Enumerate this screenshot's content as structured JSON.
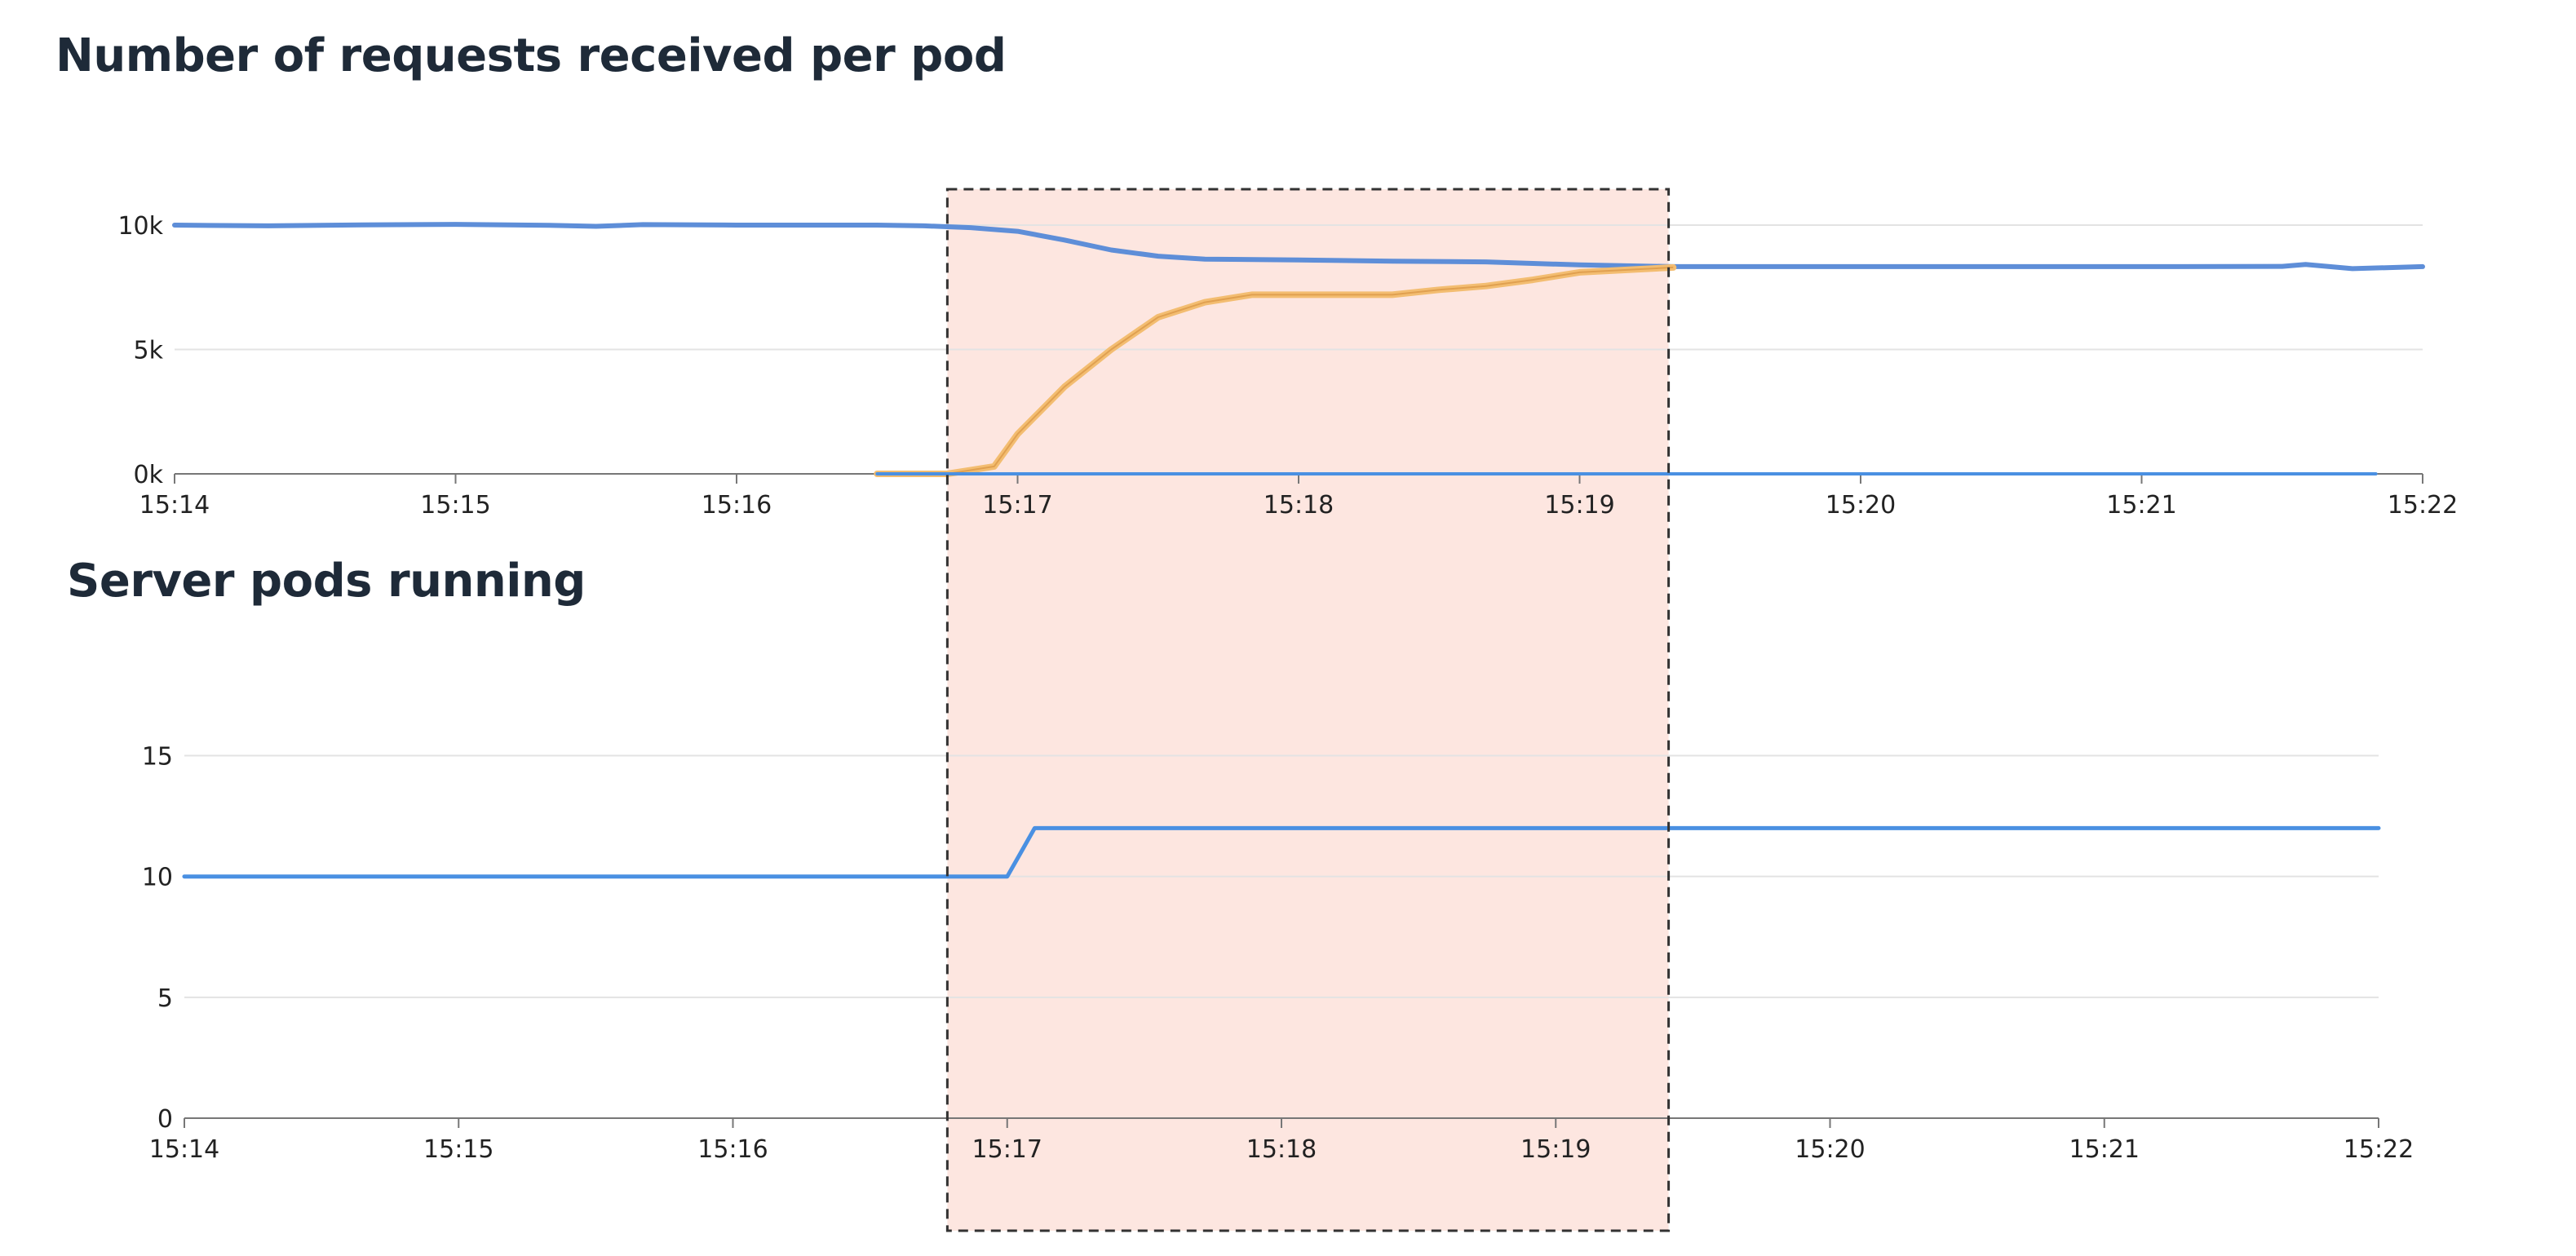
{
  "chart_data": [
    {
      "type": "line",
      "title": "Number of requests received per pod",
      "x_ticks": [
        "15:14",
        "15:15",
        "15:16",
        "15:17",
        "15:18",
        "15:19",
        "15:20",
        "15:21",
        "15:22"
      ],
      "y_ticks": [
        "0k",
        "5k",
        "10k"
      ],
      "ylim": [
        0,
        12000
      ],
      "xlim_minutes": [
        "15:14",
        "15:22"
      ],
      "grid": true,
      "series": [
        {
          "color": "#5e8ed8",
          "points": [
            [
              "15:14",
              10000
            ],
            [
              "15:14:20",
              9970
            ],
            [
              "15:14:40",
              10010
            ],
            [
              "15:15",
              10030
            ],
            [
              "15:15:20",
              9990
            ],
            [
              "15:15:30",
              9950
            ],
            [
              "15:15:40",
              10020
            ],
            [
              "15:16",
              10000
            ],
            [
              "15:16:30",
              10000
            ],
            [
              "15:16:40",
              9970
            ],
            [
              "15:16:50",
              9900
            ],
            [
              "15:17",
              9750
            ],
            [
              "15:17:10",
              9400
            ],
            [
              "15:17:20",
              9000
            ],
            [
              "15:17:30",
              8750
            ],
            [
              "15:17:40",
              8630
            ],
            [
              "15:18",
              8600
            ],
            [
              "15:18:20",
              8550
            ],
            [
              "15:18:40",
              8520
            ],
            [
              "15:19",
              8400
            ],
            [
              "15:19:20",
              8330
            ],
            [
              "15:20",
              8330
            ],
            [
              "15:21",
              8330
            ],
            [
              "15:21:30",
              8340
            ],
            [
              "15:21:35",
              8420
            ],
            [
              "15:21:45",
              8250
            ],
            [
              "15:22",
              8330
            ]
          ]
        },
        {
          "color": "#f3bd71",
          "points": [
            [
              "15:16:30",
              0
            ],
            [
              "15:16:45",
              0
            ],
            [
              "15:16:55",
              300
            ],
            [
              "15:17",
              1600
            ],
            [
              "15:17:10",
              3500
            ],
            [
              "15:17:20",
              5000
            ],
            [
              "15:17:30",
              6300
            ],
            [
              "15:17:40",
              6900
            ],
            [
              "15:17:50",
              7200
            ],
            [
              "15:18",
              7200
            ],
            [
              "15:18:20",
              7200
            ],
            [
              "15:18:30",
              7400
            ],
            [
              "15:18:40",
              7550
            ],
            [
              "15:18:50",
              7800
            ],
            [
              "15:19",
              8100
            ],
            [
              "15:19:20",
              8300
            ]
          ]
        },
        {
          "color": "#4a90e2",
          "points": [
            [
              "15:16:30",
              0
            ],
            [
              "15:21:50",
              0
            ]
          ]
        }
      ]
    },
    {
      "type": "line",
      "title": "Server pods running",
      "x_ticks": [
        "15:14",
        "15:15",
        "15:16",
        "15:17",
        "15:18",
        "15:19",
        "15:20",
        "15:21",
        "15:22"
      ],
      "y_ticks": [
        "0",
        "5",
        "10",
        "15"
      ],
      "ylim": [
        0,
        19
      ],
      "xlim_minutes": [
        "15:14",
        "15:22"
      ],
      "grid": true,
      "series": [
        {
          "color": "#4a90e2",
          "points": [
            [
              "15:14",
              10
            ],
            [
              "15:17",
              10
            ],
            [
              "15:17:03",
              11
            ],
            [
              "15:17:06",
              12
            ],
            [
              "15:22",
              12
            ]
          ]
        }
      ]
    }
  ],
  "highlight": {
    "from": "15:16:45",
    "to": "15:19:19",
    "fill": "#fde6e0",
    "border": "#333333"
  },
  "colors": {
    "title": "#1e2a38",
    "axis": "#777777",
    "grid": "#e3e3e3",
    "tick_text": "#222222"
  }
}
